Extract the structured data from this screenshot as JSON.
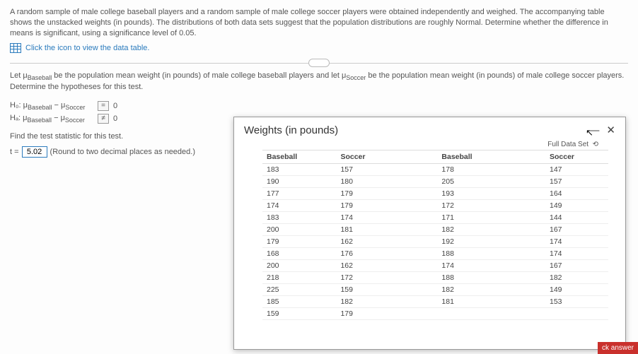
{
  "intro": "A random sample of male college baseball players and a random sample of male college soccer players were obtained independently and weighed. The accompanying table shows the unstacked weights (in pounds). The distributions of both data sets suggest that the population distributions are roughly Normal. Determine whether the difference in means is significant, using a significance level of 0.05.",
  "link": {
    "label": "Click the icon to view the data table."
  },
  "para2_a": "Let ",
  "para2_b": " be the population mean weight (in pounds) of male college baseball players and let ",
  "para2_c": " be the population mean weight (in pounds) of male college soccer players. Determine the hypotheses for this test.",
  "mu": "μ",
  "sub_baseball": "Baseball",
  "sub_soccer": "Soccer",
  "hyp": {
    "h0_label": "H₀: μ",
    "h0_minus": " − μ",
    "ha_label": "Hₐ: μ",
    "op_eq": "=",
    "op_ne": "≠",
    "val": "0"
  },
  "findline": "Find the test statistic for this test.",
  "t_letter": "t =",
  "t_value": "5.02",
  "roundnote": "(Round to two decimal places as needed.)",
  "popup": {
    "title": "Weights (in pounds)",
    "fullset": "Full Data Set",
    "reset": "⟲",
    "minimize": "—",
    "close": "✕",
    "headers": [
      "Baseball",
      "Soccer",
      "Baseball",
      "Soccer"
    ],
    "rows": [
      [
        "183",
        "157",
        "178",
        "147"
      ],
      [
        "190",
        "180",
        "205",
        "157"
      ],
      [
        "177",
        "179",
        "193",
        "164"
      ],
      [
        "174",
        "179",
        "172",
        "149"
      ],
      [
        "183",
        "174",
        "171",
        "144"
      ],
      [
        "200",
        "181",
        "182",
        "167"
      ],
      [
        "179",
        "162",
        "192",
        "174"
      ],
      [
        "168",
        "176",
        "188",
        "174"
      ],
      [
        "200",
        "162",
        "174",
        "167"
      ],
      [
        "218",
        "172",
        "188",
        "182"
      ],
      [
        "225",
        "159",
        "182",
        "149"
      ],
      [
        "185",
        "182",
        "181",
        "153"
      ],
      [
        "159",
        "179",
        "",
        ""
      ]
    ]
  },
  "ck": "ck answer"
}
